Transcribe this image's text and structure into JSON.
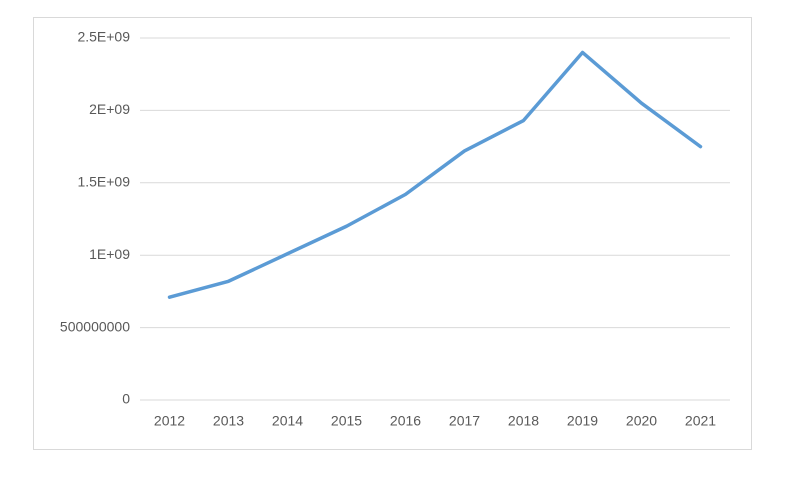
{
  "chart_data": {
    "type": "line",
    "categories": [
      "2012",
      "2013",
      "2014",
      "2015",
      "2016",
      "2017",
      "2018",
      "2019",
      "2020",
      "2021"
    ],
    "series": [
      {
        "color": "#5b9bd5",
        "values": [
          710000000,
          820000000,
          1010000000,
          1200000000,
          1420000000,
          1720000000,
          1930000000,
          2400000000,
          2050000000,
          1750000000
        ]
      }
    ],
    "ylim": [
      0,
      2500000000
    ],
    "yticks": [
      0,
      500000000,
      {
        "value": 1000000000,
        "label": "1E+09"
      },
      {
        "value": 1500000000,
        "label": "1.5E+09"
      },
      {
        "value": 2000000000,
        "label": "2E+09"
      },
      {
        "value": 2500000000,
        "label": "2.5E+09"
      }
    ],
    "grid": true
  }
}
